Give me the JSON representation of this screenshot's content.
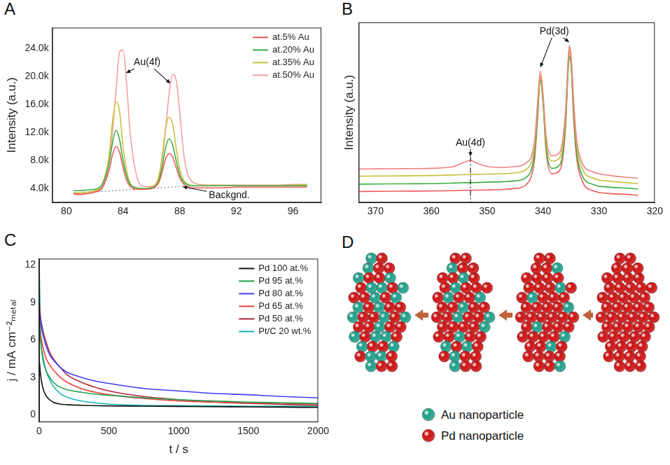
{
  "chart_data": [
    {
      "title": "A",
      "type": "line",
      "y_label": "Intensity (a.u.)",
      "x": [
        80.5,
        81,
        81.5,
        82,
        82.5,
        83,
        83.25,
        83.5,
        83.75,
        84,
        84.25,
        84.5,
        85,
        85.5,
        86,
        86.5,
        86.75,
        87,
        87.25,
        87.5,
        87.75,
        88,
        88.25,
        88.5,
        89,
        90,
        91,
        92,
        93,
        94,
        95,
        96,
        97
      ],
      "series": [
        {
          "name": "at.5% Au",
          "color": "#ee5a5a",
          "values": [
            3300,
            3200,
            3300,
            3500,
            4000,
            6500,
            8800,
            10000,
            9200,
            7000,
            5200,
            4300,
            3900,
            3900,
            4000,
            4800,
            6300,
            8200,
            9000,
            8500,
            7000,
            5500,
            4700,
            4300,
            4100,
            4100,
            4100,
            4200,
            4200,
            4200,
            4200,
            4200,
            4200
          ]
        },
        {
          "name": "at.20% Au",
          "color": "#3cb043",
          "values": [
            3700,
            3700,
            3800,
            3900,
            4500,
            7500,
            10500,
            12300,
            11000,
            8000,
            5800,
            4600,
            4100,
            4000,
            4100,
            5000,
            7000,
            9800,
            11100,
            10200,
            8000,
            6000,
            5000,
            4600,
            4400,
            4400,
            4400,
            4400,
            4400,
            4400,
            4400,
            4400,
            4400
          ]
        },
        {
          "name": "at.35% Au",
          "color": "#c8c040",
          "values": [
            3400,
            3400,
            3500,
            3700,
            4500,
            8500,
            13500,
            16400,
            15000,
            10000,
            6500,
            4800,
            4000,
            4000,
            4200,
            5500,
            8500,
            12500,
            14200,
            13200,
            9800,
            6800,
            5300,
            4700,
            4400,
            4400,
            4400,
            4400,
            4400,
            4400,
            4400,
            4500,
            4500
          ]
        },
        {
          "name": "at.50% Au",
          "color": "#f4a0a0",
          "values": [
            3200,
            3100,
            3300,
            3500,
            4200,
            7500,
            12000,
            18000,
            23500,
            23800,
            19000,
            12000,
            5500,
            4300,
            4300,
            5500,
            8000,
            12500,
            17500,
            20300,
            19500,
            15000,
            9500,
            6500,
            4800,
            4500,
            4500,
            4500,
            4500,
            4500,
            4500,
            4600,
            4600
          ]
        }
      ],
      "background": {
        "color": "#8c8c8c",
        "line_style": "dotted",
        "x": [
          80.5,
          82,
          84,
          86,
          88,
          89
        ],
        "values": [
          3300,
          3500,
          3800,
          4000,
          4300,
          4400
        ]
      },
      "annotations": [
        {
          "text": "Au(4f)",
          "x": 85.7,
          "y": 22000,
          "arrows": [
            [
              84.2,
              20500
            ],
            [
              87.35,
              19000
            ]
          ]
        },
        {
          "text": "Backgnd.",
          "x": 91.5,
          "y": 3000,
          "arrows": [
            [
              88.2,
              4250
            ]
          ]
        }
      ],
      "xlim": [
        79,
        98
      ],
      "xticks": [
        80,
        84,
        88,
        92,
        96
      ],
      "ylim": [
        2000,
        27000
      ],
      "yticks": [
        {
          "value": 4000,
          "label": "4.0k"
        },
        {
          "value": 8000,
          "label": "8.0k"
        },
        {
          "value": 12000,
          "label": "12.0k"
        },
        {
          "value": 16000,
          "label": "16.0k"
        },
        {
          "value": 20000,
          "label": "20.0k"
        },
        {
          "value": 24000,
          "label": "24.0k"
        }
      ],
      "legend": "upper right",
      "grid": false
    },
    {
      "title": "B",
      "type": "line",
      "y_label": "Intensity (a.u.)",
      "x": [
        373,
        370,
        365,
        360,
        356,
        354,
        353,
        352,
        350,
        347,
        345,
        343,
        341.5,
        341,
        340.5,
        340,
        339.5,
        338.5,
        337,
        336,
        335.5,
        335.3,
        335,
        334.5,
        334,
        333,
        331,
        328,
        325,
        323
      ],
      "series": [
        {
          "color": "#f08080",
          "values": [
            18.6,
            18.7,
            18.8,
            19,
            20,
            22.5,
            23.5,
            22,
            20,
            19.5,
            20,
            22,
            35,
            55,
            73,
            60,
            38,
            26,
            28,
            50,
            80,
            87,
            82,
            55,
            35,
            22,
            17,
            15,
            14,
            13.5
          ]
        },
        {
          "color": "#c8c040",
          "values": [
            14.6,
            14.7,
            14.8,
            15,
            15.3,
            15.5,
            15.6,
            15.6,
            15.8,
            16,
            16.5,
            18.5,
            32,
            52,
            71,
            58,
            35,
            23,
            25,
            47,
            78,
            85,
            80,
            52,
            32,
            19,
            13.5,
            11.8,
            11,
            10.5
          ]
        },
        {
          "color": "#3cb043",
          "values": [
            10.2,
            10.3,
            10.4,
            10.5,
            10.8,
            11,
            11,
            11.1,
            11.3,
            11.6,
            12,
            14,
            28,
            48,
            68,
            55,
            32,
            19,
            21,
            43,
            74,
            81,
            76,
            48,
            28,
            15,
            10,
            8.5,
            8,
            7.5
          ]
        },
        {
          "color": "#ee5a5a",
          "values": [
            6.1,
            6.2,
            6.3,
            6.4,
            6.6,
            6.8,
            6.8,
            6.9,
            7,
            7.3,
            7.8,
            10,
            25,
            46,
            70,
            56,
            30,
            16,
            18,
            41,
            76,
            84,
            79,
            45,
            25,
            12,
            6.5,
            5,
            4.5,
            4
          ]
        }
      ],
      "annotations": [
        {
          "text": "Au(4d)",
          "x": 353,
          "y": 33,
          "arrows": [
            [
              353,
              25.5
            ]
          ],
          "line_style": "dashdot"
        },
        {
          "text": "Pd(3d)",
          "x": 338,
          "y": 95,
          "arrows": [
            [
              340.5,
              75
            ],
            [
              335.3,
              89
            ]
          ]
        }
      ],
      "xlim": [
        373,
        320
      ],
      "xticks": [
        370,
        360,
        350,
        340,
        330,
        320
      ],
      "ylim": [
        0,
        100
      ],
      "tick_labels": "x",
      "grid": false
    },
    {
      "title": "C",
      "type": "line",
      "x_label": "t / s",
      "y_label": "j / mA cm⁻²ₘₑₜₐₗ",
      "x": [
        0,
        10,
        25,
        50,
        75,
        100,
        150,
        200,
        300,
        400,
        500,
        750,
        1000,
        1250,
        1500,
        1750,
        2000
      ],
      "series": [
        {
          "name": "Pd 100 at.%",
          "color": "#111111",
          "values": [
            4.5,
            3.2,
            2.2,
            1.5,
            1.2,
            1.0,
            0.85,
            0.8,
            0.75,
            0.72,
            0.7,
            0.68,
            0.66,
            0.64,
            0.62,
            0.6,
            0.58
          ]
        },
        {
          "name": "Pd 95 at.%",
          "color": "#1fa04a",
          "values": [
            8,
            6,
            4.5,
            3.5,
            3,
            2.6,
            2.2,
            2.0,
            1.8,
            1.65,
            1.55,
            1.35,
            1.2,
            1.1,
            1.0,
            0.95,
            0.9
          ]
        },
        {
          "name": "Pd 80 at.%",
          "color": "#3f3fff",
          "values": [
            8.5,
            7.5,
            6.5,
            5.5,
            4.8,
            4.4,
            3.8,
            3.4,
            3.0,
            2.7,
            2.5,
            2.1,
            1.9,
            1.7,
            1.6,
            1.45,
            1.35
          ]
        },
        {
          "name": "Pd 65 at.%",
          "color": "#e8413c",
          "values": [
            8,
            6.5,
            5.5,
            4.5,
            4.0,
            3.6,
            3.0,
            2.6,
            2.1,
            1.8,
            1.6,
            1.3,
            1.1,
            1.0,
            0.95,
            0.9,
            0.85
          ]
        },
        {
          "name": "Pd 50 at.%",
          "color": "#b0283c",
          "values": [
            9,
            7.8,
            6.8,
            5.8,
            5.0,
            4.5,
            3.8,
            3.2,
            2.6,
            2.2,
            1.9,
            1.45,
            1.2,
            1.0,
            0.9,
            0.82,
            0.75
          ]
        },
        {
          "name": "Pt/C 20 wt.%",
          "color": "#1eb4b4",
          "values": [
            12.3,
            6.5,
            4.8,
            3.5,
            2.8,
            2.3,
            1.7,
            1.4,
            1.1,
            0.95,
            0.85,
            0.75,
            0.72,
            0.7,
            0.68,
            0.67,
            0.66
          ]
        }
      ],
      "xlim": [
        0,
        2000
      ],
      "xticks": [
        0,
        500,
        1000,
        1500,
        2000
      ],
      "ylim": [
        -0.6,
        12.5
      ],
      "yticks": [
        0,
        3,
        6,
        9,
        12
      ],
      "legend": "upper right",
      "grid": false
    }
  ],
  "diagram": {
    "title": "D",
    "legend": [
      {
        "label": "Au nanoparticle",
        "color": "#1f9e89"
      },
      {
        "label": "Pd nanoparticle",
        "color": "#cc1111"
      }
    ]
  }
}
